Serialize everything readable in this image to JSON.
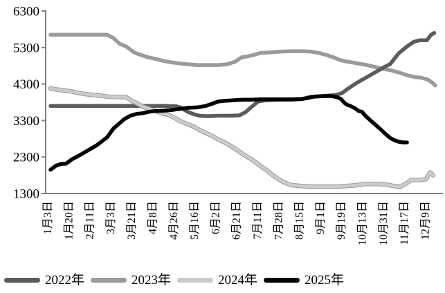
{
  "chart_data": {
    "type": "line",
    "title": "",
    "xlabel": "",
    "ylabel": "",
    "ylim": [
      1300,
      6300
    ],
    "y_ticks": [
      1300,
      2300,
      3300,
      4300,
      5300,
      6300
    ],
    "grid": false,
    "legend_position": "bottom",
    "axis_color": "#7f7f7f",
    "text_color": "#000000",
    "x_tick_labels": [
      "1月3日",
      "1月20日",
      "2月11日",
      "3月3日",
      "3月21日",
      "4月8日",
      "4月26日",
      "5月16日",
      "6月2日",
      "6月21日",
      "7月11日",
      "7月28日",
      "8月15日",
      "9月1日",
      "9月19日",
      "10月13日",
      "10月31日",
      "11月17日",
      "12月9日"
    ],
    "series": [
      {
        "name": "2023年",
        "color": "#9a9a9a",
        "points": [
          [
            0,
            5650
          ],
          [
            1,
            5650
          ],
          [
            2,
            5650
          ],
          [
            2.7,
            5650
          ],
          [
            3,
            5560
          ],
          [
            3.3,
            5400
          ],
          [
            3.6,
            5330
          ],
          [
            4,
            5160
          ],
          [
            4.3,
            5100
          ],
          [
            4.6,
            5040
          ],
          [
            5,
            4990
          ],
          [
            5.4,
            4930
          ],
          [
            5.8,
            4890
          ],
          [
            6.2,
            4860
          ],
          [
            6.6,
            4840
          ],
          [
            7,
            4820
          ],
          [
            7.5,
            4820
          ],
          [
            8,
            4820
          ],
          [
            8.4,
            4840
          ],
          [
            8.8,
            4910
          ],
          [
            9.1,
            5030
          ],
          [
            9.4,
            5060
          ],
          [
            9.7,
            5100
          ],
          [
            10,
            5150
          ],
          [
            10.5,
            5170
          ],
          [
            11,
            5190
          ],
          [
            11.5,
            5200
          ],
          [
            12,
            5200
          ],
          [
            12.4,
            5190
          ],
          [
            12.8,
            5150
          ],
          [
            13.2,
            5090
          ],
          [
            13.5,
            5030
          ],
          [
            13.8,
            4960
          ],
          [
            14.1,
            4920
          ],
          [
            14.5,
            4880
          ],
          [
            15,
            4830
          ],
          [
            15.4,
            4780
          ],
          [
            15.8,
            4720
          ],
          [
            16.2,
            4680
          ],
          [
            16.6,
            4620
          ],
          [
            17,
            4540
          ],
          [
            17.4,
            4490
          ],
          [
            17.7,
            4470
          ],
          [
            18,
            4420
          ],
          [
            18.2,
            4340
          ],
          [
            18.35,
            4260
          ]
        ]
      },
      {
        "name": "2022年",
        "color": "#5b5b5b",
        "points": [
          [
            0,
            3700
          ],
          [
            1,
            3700
          ],
          [
            2,
            3700
          ],
          [
            3,
            3700
          ],
          [
            4,
            3700
          ],
          [
            5,
            3700
          ],
          [
            5.5,
            3700
          ],
          [
            6,
            3690
          ],
          [
            6.2,
            3660
          ],
          [
            6.5,
            3550
          ],
          [
            6.8,
            3480
          ],
          [
            7.1,
            3430
          ],
          [
            7.5,
            3420
          ],
          [
            8,
            3430
          ],
          [
            8.5,
            3430
          ],
          [
            9,
            3440
          ],
          [
            9.3,
            3530
          ],
          [
            9.6,
            3680
          ],
          [
            9.9,
            3820
          ],
          [
            10.2,
            3850
          ],
          [
            10.6,
            3860
          ],
          [
            11,
            3870
          ],
          [
            11.5,
            3870
          ],
          [
            12,
            3890
          ],
          [
            12.4,
            3950
          ],
          [
            12.8,
            3960
          ],
          [
            13.2,
            3980
          ],
          [
            13.6,
            4000
          ],
          [
            13.9,
            4050
          ],
          [
            14.2,
            4180
          ],
          [
            14.6,
            4330
          ],
          [
            14.9,
            4430
          ],
          [
            15.3,
            4560
          ],
          [
            15.6,
            4660
          ],
          [
            15.9,
            4760
          ],
          [
            16.2,
            4850
          ],
          [
            16.6,
            5140
          ],
          [
            17,
            5330
          ],
          [
            17.3,
            5450
          ],
          [
            17.6,
            5500
          ],
          [
            17.95,
            5500
          ],
          [
            18.15,
            5650
          ],
          [
            18.3,
            5700
          ]
        ]
      },
      {
        "name": "2024年",
        "color": "#cbcbcb",
        "outline": "#9b9b9b",
        "points": [
          [
            0,
            4180
          ],
          [
            0.3,
            4150
          ],
          [
            0.6,
            4130
          ],
          [
            1,
            4100
          ],
          [
            1.3,
            4060
          ],
          [
            1.6,
            4030
          ],
          [
            2,
            4000
          ],
          [
            2.4,
            3980
          ],
          [
            2.8,
            3950
          ],
          [
            3.2,
            3945
          ],
          [
            3.6,
            3940
          ],
          [
            3.9,
            3830
          ],
          [
            4.1,
            3780
          ],
          [
            4.4,
            3680
          ],
          [
            4.7,
            3620
          ],
          [
            5,
            3560
          ],
          [
            5.3,
            3500
          ],
          [
            5.6,
            3460
          ],
          [
            5.9,
            3380
          ],
          [
            6.2,
            3280
          ],
          [
            6.5,
            3210
          ],
          [
            6.8,
            3140
          ],
          [
            7.1,
            3040
          ],
          [
            7.4,
            2960
          ],
          [
            7.7,
            2880
          ],
          [
            8,
            2780
          ],
          [
            8.3,
            2700
          ],
          [
            8.6,
            2600
          ],
          [
            9,
            2450
          ],
          [
            9.3,
            2330
          ],
          [
            9.6,
            2230
          ],
          [
            10,
            2060
          ],
          [
            10.3,
            1940
          ],
          [
            10.6,
            1800
          ],
          [
            10.9,
            1680
          ],
          [
            11.2,
            1590
          ],
          [
            11.5,
            1530
          ],
          [
            12,
            1500
          ],
          [
            12.5,
            1490
          ],
          [
            13,
            1490
          ],
          [
            13.5,
            1490
          ],
          [
            14,
            1500
          ],
          [
            14.5,
            1520
          ],
          [
            15,
            1560
          ],
          [
            15.5,
            1560
          ],
          [
            16,
            1550
          ],
          [
            16.4,
            1500
          ],
          [
            16.7,
            1490
          ],
          [
            17,
            1590
          ],
          [
            17.2,
            1670
          ],
          [
            17.6,
            1670
          ],
          [
            17.9,
            1690
          ],
          [
            18.1,
            1880
          ],
          [
            18.25,
            1800
          ]
        ]
      },
      {
        "name": "2025年",
        "color": "#000000",
        "points": [
          [
            0,
            1950
          ],
          [
            0.25,
            2060
          ],
          [
            0.5,
            2110
          ],
          [
            0.75,
            2120
          ],
          [
            1,
            2230
          ],
          [
            1.3,
            2320
          ],
          [
            1.6,
            2420
          ],
          [
            1.9,
            2520
          ],
          [
            2.2,
            2620
          ],
          [
            2.45,
            2730
          ],
          [
            2.7,
            2840
          ],
          [
            3,
            3080
          ],
          [
            3.2,
            3180
          ],
          [
            3.5,
            3330
          ],
          [
            3.8,
            3430
          ],
          [
            4.1,
            3480
          ],
          [
            4.4,
            3500
          ],
          [
            4.7,
            3540
          ],
          [
            5,
            3560
          ],
          [
            5.4,
            3570
          ],
          [
            5.8,
            3590
          ],
          [
            6.2,
            3620
          ],
          [
            6.6,
            3650
          ],
          [
            7,
            3660
          ],
          [
            7.4,
            3700
          ],
          [
            7.8,
            3780
          ],
          [
            8,
            3820
          ],
          [
            8.3,
            3840
          ],
          [
            8.6,
            3850
          ],
          [
            8.9,
            3860
          ],
          [
            9.2,
            3870
          ],
          [
            9.6,
            3870
          ],
          [
            10,
            3880
          ],
          [
            10.5,
            3880
          ],
          [
            11,
            3880
          ],
          [
            11.5,
            3880
          ],
          [
            12,
            3890
          ],
          [
            12.3,
            3920
          ],
          [
            12.6,
            3960
          ],
          [
            13,
            3970
          ],
          [
            13.4,
            3970
          ],
          [
            13.7,
            3930
          ],
          [
            13.85,
            3890
          ],
          [
            14,
            3790
          ],
          [
            14.15,
            3730
          ],
          [
            14.3,
            3700
          ],
          [
            14.5,
            3640
          ],
          [
            14.7,
            3560
          ],
          [
            14.85,
            3540
          ],
          [
            15,
            3440
          ],
          [
            15.2,
            3330
          ],
          [
            15.4,
            3230
          ],
          [
            15.7,
            3080
          ],
          [
            16,
            2920
          ],
          [
            16.2,
            2820
          ],
          [
            16.4,
            2760
          ],
          [
            16.6,
            2720
          ],
          [
            16.8,
            2700
          ],
          [
            17,
            2700
          ]
        ]
      }
    ],
    "legend": {
      "items": [
        "2022年",
        "2023年",
        "2024年",
        "2025年"
      ]
    }
  }
}
